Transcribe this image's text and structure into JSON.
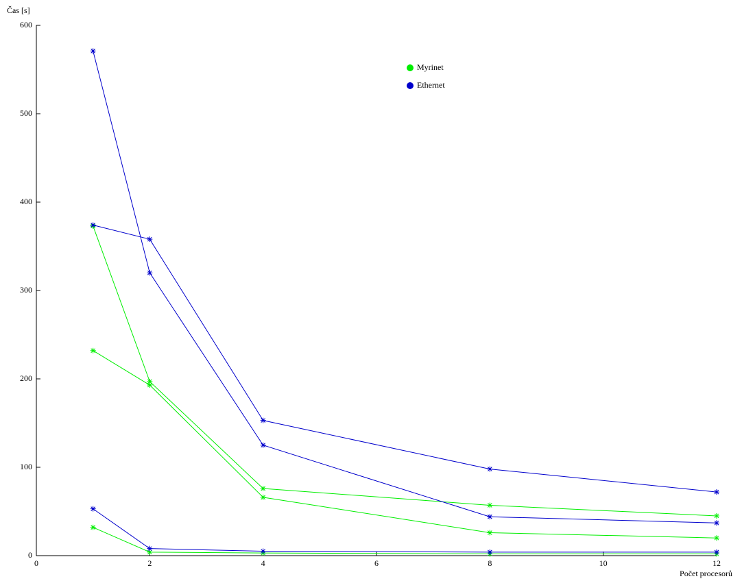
{
  "chart_data": {
    "type": "line",
    "ylabel": "Čas [s]",
    "xlabel": "Počet procesorů",
    "x": [
      1,
      2,
      4,
      8,
      12
    ],
    "series": [
      {
        "name": "Myrinet",
        "color": "#00ee00",
        "values": [
          [
            373,
            197,
            76,
            57,
            45
          ],
          [
            232,
            193,
            66,
            26,
            20
          ],
          [
            32,
            4,
            3,
            2,
            2
          ]
        ]
      },
      {
        "name": "Ethernet",
        "color": "#0000cc",
        "values": [
          [
            571,
            320,
            125,
            44,
            37
          ],
          [
            374,
            358,
            153,
            98,
            72
          ],
          [
            53,
            8,
            5,
            4,
            4
          ]
        ]
      }
    ],
    "xlim": [
      0,
      12
    ],
    "xticks": [
      0,
      2,
      4,
      6,
      8,
      10,
      12
    ],
    "ylim": [
      0,
      600
    ],
    "yticks": [
      0,
      100,
      200,
      300,
      400,
      500,
      600
    ],
    "grid": false
  }
}
